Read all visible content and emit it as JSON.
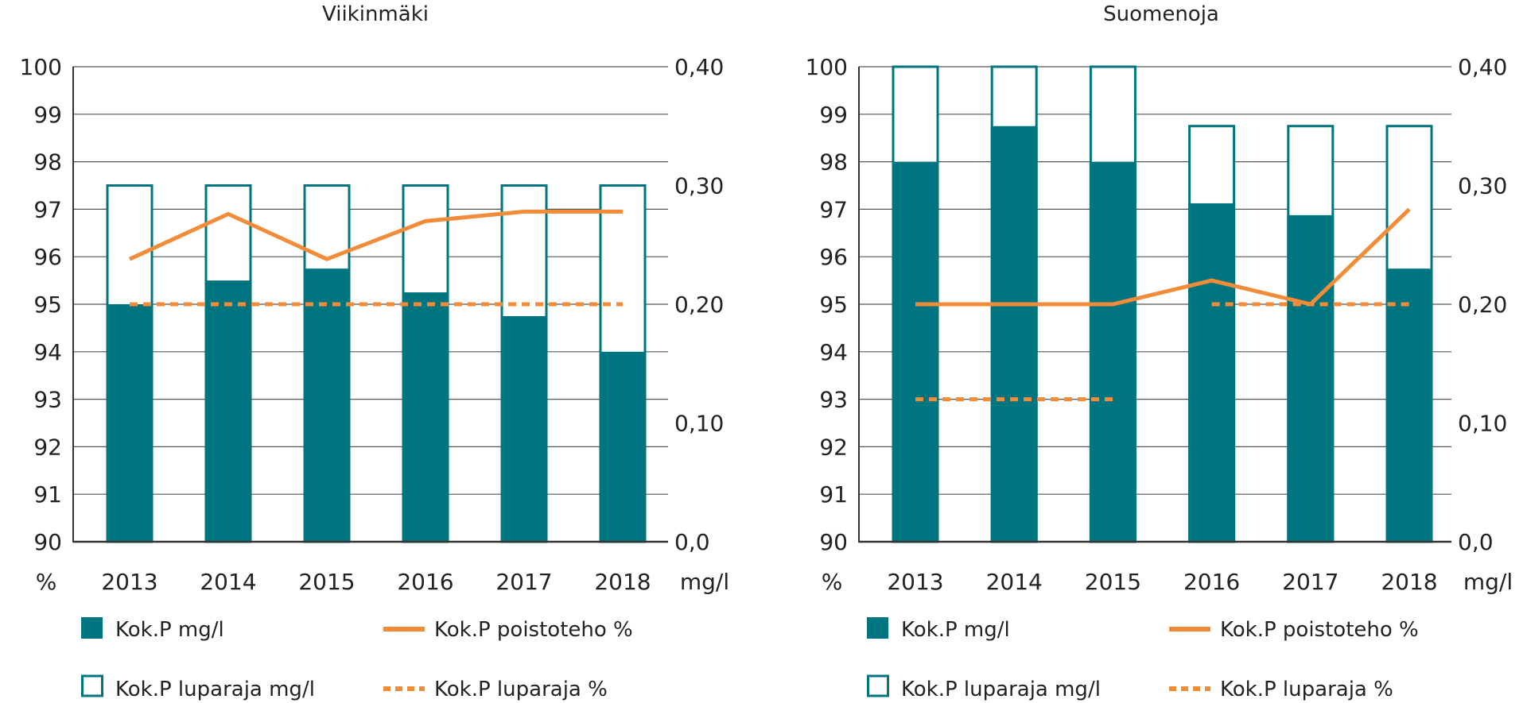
{
  "colors": {
    "bar_fill": "#00747F",
    "bar_outline": "#00747F",
    "line": "#F28C38",
    "grid": "#555555",
    "axis": "#333333"
  },
  "legend": {
    "bar": "Kok.P mg/l",
    "outline": "Kok.P luparaja mg/l",
    "line": "Kok.P poistoteho %",
    "dashed": "Kok.P luparaja %"
  },
  "chart_data": [
    {
      "type": "bar",
      "title": "Viikinmäki",
      "categories": [
        "2013",
        "2014",
        "2015",
        "2016",
        "2017",
        "2018"
      ],
      "y_left": {
        "unit_label": "%",
        "ylim": [
          90,
          100
        ],
        "ticks": [
          "90",
          "91",
          "92",
          "93",
          "94",
          "95",
          "96",
          "97",
          "98",
          "99",
          "100"
        ]
      },
      "y_right": {
        "unit_label": "mg/l",
        "ylim": [
          0,
          0.4
        ],
        "ticks": [
          "0,0",
          "0,10",
          "0,20",
          "0,30",
          "0,40"
        ]
      },
      "grid": true,
      "series": [
        {
          "name": "Kok.P mg/l",
          "kind": "bar",
          "axis": "right",
          "values": [
            0.2,
            0.22,
            0.23,
            0.21,
            0.19,
            0.16
          ]
        },
        {
          "name": "Kok.P luparaja mg/l",
          "kind": "bar-outline",
          "axis": "right",
          "values": [
            0.3,
            0.3,
            0.3,
            0.3,
            0.3,
            0.3
          ]
        },
        {
          "name": "Kok.P poistoteho %",
          "kind": "line",
          "axis": "left",
          "values": [
            95.95,
            96.9,
            95.95,
            96.75,
            96.95,
            96.95
          ]
        },
        {
          "name": "Kok.P luparaja %",
          "kind": "dashed-line",
          "axis": "left",
          "values": [
            95,
            95,
            95,
            95,
            95,
            95
          ]
        }
      ]
    },
    {
      "type": "bar",
      "title": "Suomenoja",
      "categories": [
        "2013",
        "2014",
        "2015",
        "2016",
        "2017",
        "2018"
      ],
      "y_left": {
        "unit_label": "%",
        "ylim": [
          90,
          100
        ],
        "ticks": [
          "90",
          "91",
          "92",
          "93",
          "94",
          "95",
          "96",
          "97",
          "98",
          "99",
          "100"
        ]
      },
      "y_right": {
        "unit_label": "mg/l",
        "ylim": [
          0,
          0.4
        ],
        "ticks": [
          "0,0",
          "0,10",
          "0,20",
          "0,30",
          "0,40"
        ]
      },
      "grid": true,
      "series": [
        {
          "name": "Kok.P mg/l",
          "kind": "bar",
          "axis": "right",
          "values": [
            0.32,
            0.35,
            0.32,
            0.285,
            0.275,
            0.23
          ]
        },
        {
          "name": "Kok.P luparaja mg/l",
          "kind": "bar-outline",
          "axis": "right",
          "values": [
            0.4,
            0.4,
            0.4,
            0.35,
            0.35,
            0.35
          ]
        },
        {
          "name": "Kok.P poistoteho %",
          "kind": "line",
          "axis": "left",
          "values": [
            95,
            95,
            95,
            95.5,
            95,
            97
          ]
        },
        {
          "name": "Kok.P luparaja %",
          "kind": "dashed-line",
          "axis": "left",
          "segments": [
            {
              "from": "2013",
              "to": "2015",
              "value": 93
            },
            {
              "from": "2016",
              "to": "2018",
              "value": 95
            }
          ]
        }
      ]
    }
  ]
}
